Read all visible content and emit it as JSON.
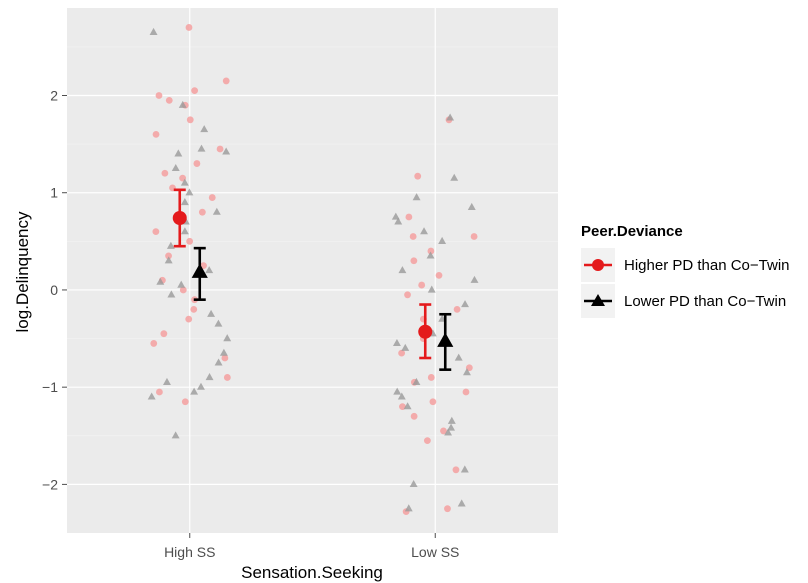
{
  "chart_data": {
    "type": "scatter",
    "xlabel": "Sensation.Seeking",
    "ylabel": "log.Delinquency",
    "categories": [
      "High SS",
      "Low SS"
    ],
    "ylim": [
      -2.5,
      2.9
    ],
    "y_ticks": [
      -2,
      -1,
      0,
      1,
      2
    ],
    "y_tick_labels": [
      "−2",
      "−1",
      "0",
      "1",
      "2"
    ],
    "grid": true,
    "legend": {
      "title": "Peer.Deviance",
      "placement": "right",
      "entries": [
        "Higher PD than Co−Twin",
        "Lower PD than Co−Twin"
      ]
    },
    "colors": {
      "higher": "#e41a1c",
      "lower": "#000000",
      "higher_point": "#f4a0a0",
      "lower_point": "#9a9a9a",
      "panel": "#ebebeb",
      "grid": "#ffffff"
    },
    "summary": [
      {
        "name": "Higher PD than Co−Twin",
        "shape": "circle",
        "means": [
          0.74,
          -0.43
        ],
        "lower": [
          0.45,
          -0.7
        ],
        "upper": [
          1.03,
          -0.15
        ]
      },
      {
        "name": "Lower PD than Co−Twin",
        "shape": "triangle",
        "means": [
          0.18,
          -0.53
        ],
        "lower": [
          -0.1,
          -0.82
        ],
        "upper": [
          0.43,
          -0.25
        ]
      }
    ],
    "series": [
      {
        "name": "Higher PD than Co−Twin",
        "shape": "circle",
        "points": [
          [
            "High SS",
            2.7
          ],
          [
            "High SS",
            2.05
          ],
          [
            "High SS",
            2.0
          ],
          [
            "High SS",
            1.95
          ],
          [
            "High SS",
            1.9
          ],
          [
            "High SS",
            1.75
          ],
          [
            "High SS",
            1.6
          ],
          [
            "High SS",
            1.45
          ],
          [
            "High SS",
            1.3
          ],
          [
            "High SS",
            1.15
          ],
          [
            "High SS",
            1.05
          ],
          [
            "High SS",
            0.95
          ],
          [
            "High SS",
            0.8
          ],
          [
            "High SS",
            0.6
          ],
          [
            "High SS",
            0.5
          ],
          [
            "High SS",
            0.35
          ],
          [
            "High SS",
            0.25
          ],
          [
            "High SS",
            0.1
          ],
          [
            "High SS",
            -0.1
          ],
          [
            "High SS",
            -0.3
          ],
          [
            "High SS",
            -0.45
          ],
          [
            "High SS",
            -0.55
          ],
          [
            "High SS",
            -0.7
          ],
          [
            "High SS",
            -0.9
          ],
          [
            "High SS",
            -1.05
          ],
          [
            "High SS",
            -1.15
          ],
          [
            "High SS",
            2.15
          ],
          [
            "High SS",
            1.2
          ],
          [
            "High SS",
            0.0
          ],
          [
            "High SS",
            -0.2
          ],
          [
            "Low SS",
            1.75
          ],
          [
            "Low SS",
            1.17
          ],
          [
            "Low SS",
            0.75
          ],
          [
            "Low SS",
            0.55
          ],
          [
            "Low SS",
            0.4
          ],
          [
            "Low SS",
            0.3
          ],
          [
            "Low SS",
            0.15
          ],
          [
            "Low SS",
            0.05
          ],
          [
            "Low SS",
            -0.05
          ],
          [
            "Low SS",
            -0.2
          ],
          [
            "Low SS",
            -0.3
          ],
          [
            "Low SS",
            -0.5
          ],
          [
            "Low SS",
            -0.65
          ],
          [
            "Low SS",
            -0.8
          ],
          [
            "Low SS",
            -0.95
          ],
          [
            "Low SS",
            -1.05
          ],
          [
            "Low SS",
            -1.15
          ],
          [
            "Low SS",
            -1.3
          ],
          [
            "Low SS",
            -1.45
          ],
          [
            "Low SS",
            -1.55
          ],
          [
            "Low SS",
            -1.85
          ],
          [
            "Low SS",
            -2.25
          ],
          [
            "Low SS",
            -2.28
          ],
          [
            "Low SS",
            0.55
          ],
          [
            "Low SS",
            -0.9
          ],
          [
            "Low SS",
            -1.2
          ]
        ]
      },
      {
        "name": "Lower PD than Co−Twin",
        "shape": "triangle",
        "points": [
          [
            "High SS",
            2.65
          ],
          [
            "High SS",
            1.9
          ],
          [
            "High SS",
            1.65
          ],
          [
            "High SS",
            1.45
          ],
          [
            "High SS",
            1.42
          ],
          [
            "High SS",
            1.25
          ],
          [
            "High SS",
            1.1
          ],
          [
            "High SS",
            1.0
          ],
          [
            "High SS",
            0.9
          ],
          [
            "High SS",
            0.8
          ],
          [
            "High SS",
            0.7
          ],
          [
            "High SS",
            0.6
          ],
          [
            "High SS",
            0.45
          ],
          [
            "High SS",
            0.3
          ],
          [
            "High SS",
            0.2
          ],
          [
            "High SS",
            0.08
          ],
          [
            "High SS",
            -0.05
          ],
          [
            "High SS",
            -0.25
          ],
          [
            "High SS",
            -0.35
          ],
          [
            "High SS",
            -0.5
          ],
          [
            "High SS",
            -0.65
          ],
          [
            "High SS",
            -0.75
          ],
          [
            "High SS",
            -0.9
          ],
          [
            "High SS",
            -1.0
          ],
          [
            "High SS",
            -1.05
          ],
          [
            "High SS",
            -1.1
          ],
          [
            "High SS",
            -1.5
          ],
          [
            "High SS",
            1.4
          ],
          [
            "High SS",
            -0.95
          ],
          [
            "High SS",
            0.05
          ],
          [
            "Low SS",
            1.77
          ],
          [
            "Low SS",
            1.15
          ],
          [
            "Low SS",
            0.95
          ],
          [
            "Low SS",
            0.85
          ],
          [
            "Low SS",
            0.75
          ],
          [
            "Low SS",
            0.6
          ],
          [
            "Low SS",
            0.5
          ],
          [
            "Low SS",
            0.35
          ],
          [
            "Low SS",
            0.2
          ],
          [
            "Low SS",
            0.1
          ],
          [
            "Low SS",
            0.0
          ],
          [
            "Low SS",
            -0.15
          ],
          [
            "Low SS",
            -0.3
          ],
          [
            "Low SS",
            -0.45
          ],
          [
            "Low SS",
            -0.6
          ],
          [
            "Low SS",
            -0.7
          ],
          [
            "Low SS",
            -0.85
          ],
          [
            "Low SS",
            -0.95
          ],
          [
            "Low SS",
            -1.05
          ],
          [
            "Low SS",
            -1.2
          ],
          [
            "Low SS",
            -1.35
          ],
          [
            "Low SS",
            -1.42
          ],
          [
            "Low SS",
            -1.47
          ],
          [
            "Low SS",
            -1.85
          ],
          [
            "Low SS",
            -2.0
          ],
          [
            "Low SS",
            -2.2
          ],
          [
            "Low SS",
            -2.25
          ],
          [
            "Low SS",
            0.7
          ],
          [
            "Low SS",
            -1.1
          ],
          [
            "Low SS",
            -0.55
          ]
        ]
      }
    ]
  }
}
